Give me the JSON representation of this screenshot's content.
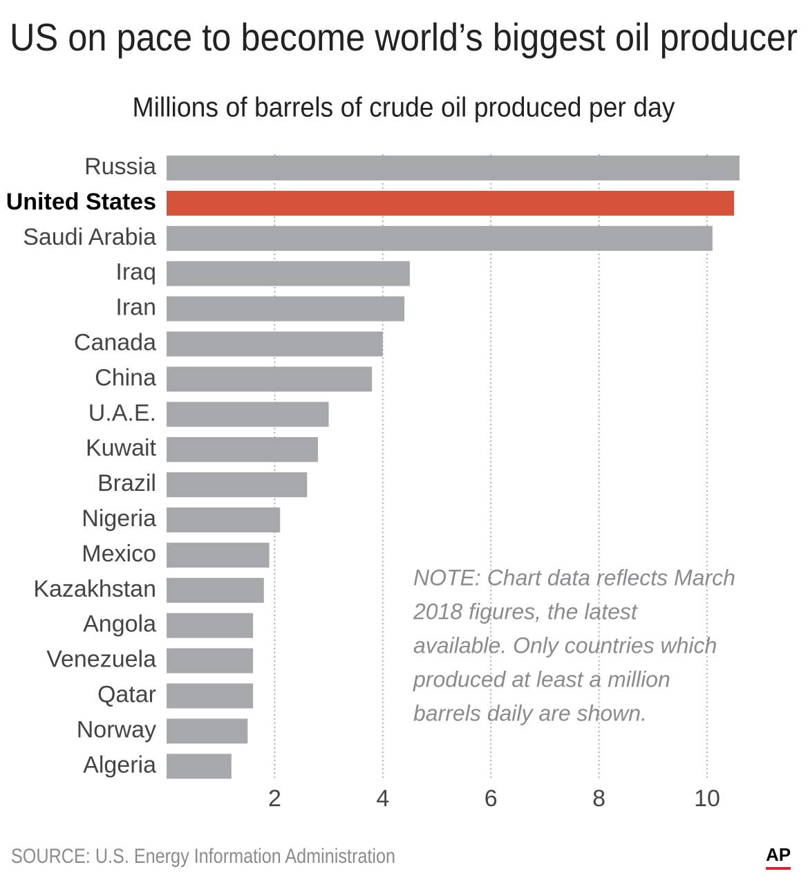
{
  "chart_data": {
    "type": "barh",
    "title": "US on pace to become world’s biggest oil producer",
    "subtitle": "Millions of barrels of crude oil produced per day",
    "categories": [
      "Russia",
      "United States",
      "Saudi Arabia",
      "Iraq",
      "Iran",
      "Canada",
      "China",
      "U.A.E.",
      "Kuwait",
      "Brazil",
      "Nigeria",
      "Mexico",
      "Kazakhstan",
      "Angola",
      "Venezuela",
      "Qatar",
      "Norway",
      "Algeria"
    ],
    "values": [
      10.6,
      10.5,
      10.1,
      4.5,
      4.4,
      4.0,
      3.8,
      3.0,
      2.8,
      2.6,
      2.1,
      1.9,
      1.8,
      1.6,
      1.6,
      1.6,
      1.5,
      1.2
    ],
    "color": "#a7a8ac",
    "highlight_color": "#d4533a",
    "highlight_index": 1,
    "xlim": [
      0,
      11
    ],
    "xticks": [
      2,
      4,
      6,
      8,
      10
    ],
    "grid": true,
    "note": [
      "NOTE: Chart data reflects March",
      "2018 figures, the latest",
      "available. Only countries which",
      "produced at least a million",
      "barrels daily are shown."
    ],
    "source": "SOURCE: U.S. Energy Information Administration",
    "credit": "AP"
  }
}
